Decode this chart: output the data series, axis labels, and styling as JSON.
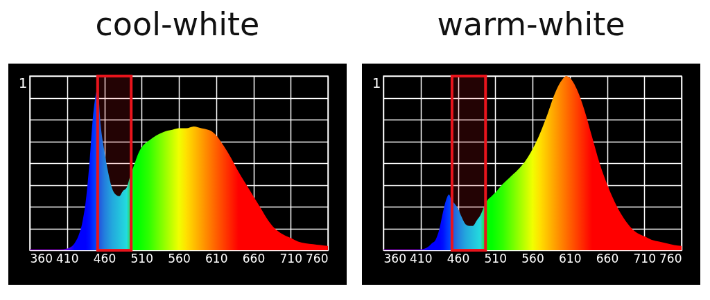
{
  "chart_data": [
    {
      "type": "area",
      "title": "cool-white",
      "x": [
        360,
        400,
        410,
        420,
        425,
        430,
        435,
        440,
        445,
        448,
        451,
        455,
        460,
        465,
        470,
        475,
        480,
        485,
        490,
        495,
        500,
        505,
        510,
        520,
        530,
        540,
        550,
        560,
        570,
        580,
        590,
        600,
        605,
        610,
        620,
        630,
        640,
        650,
        660,
        670,
        680,
        690,
        700,
        710,
        720,
        730,
        740,
        750,
        760
      ],
      "series": [
        {
          "values": [
            0.005,
            0.005,
            0.01,
            0.04,
            0.08,
            0.15,
            0.28,
            0.5,
            0.78,
            0.88,
            0.93,
            0.72,
            0.57,
            0.45,
            0.36,
            0.32,
            0.31,
            0.34,
            0.36,
            0.43,
            0.49,
            0.55,
            0.59,
            0.63,
            0.66,
            0.68,
            0.69,
            0.7,
            0.7,
            0.71,
            0.7,
            0.69,
            0.68,
            0.66,
            0.6,
            0.53,
            0.45,
            0.38,
            0.31,
            0.24,
            0.17,
            0.12,
            0.09,
            0.07,
            0.05,
            0.04,
            0.035,
            0.03,
            0.025
          ],
          "colors": [
            "#8000c0",
            "#8000c0",
            "#6000e0",
            "#0000ff",
            "#0000ff",
            "#0000ff",
            "#0000ff",
            "#0010ff",
            "#0030ff",
            "#0040ff",
            "#0050ff",
            "#0070ff",
            "#0090ff",
            "#00a8ff",
            "#00c0ff",
            "#00d0ff",
            "#00e0ff",
            "#00f0ff",
            "#00ffff",
            "#00ff60",
            "#00ff00",
            "#00ff00",
            "#10ff00",
            "#30ff00",
            "#60ff00",
            "#90ff00",
            "#c0ff00",
            "#f0ff00",
            "#ffe000",
            "#ffc000",
            "#ffa000",
            "#ff8000",
            "#ff7000",
            "#ff6000",
            "#ff4000",
            "#ff2000",
            "#ff0000",
            "#ff0000",
            "#ff0000",
            "#ff0000",
            "#ff0000",
            "#ff0000",
            "#ff0000",
            "#ff0000",
            "#ff0000",
            "#ff0000",
            "#ff0000",
            "#ff0000",
            "#ff0000"
          ]
        }
      ],
      "xlim": [
        360,
        760
      ],
      "xticks": [
        360,
        410,
        460,
        510,
        560,
        610,
        660,
        710,
        760
      ],
      "ylim": [
        0,
        1
      ],
      "yticks": [
        {
          "value": 0,
          "label": null
        },
        {
          "value": 0.125,
          "label": null
        },
        {
          "value": 0.25,
          "label": null
        },
        {
          "value": 0.375,
          "label": null
        },
        {
          "value": 0.5,
          "label": null
        },
        {
          "value": 0.625,
          "label": null
        },
        {
          "value": 0.75,
          "label": null
        },
        {
          "value": 0.875,
          "label": null
        },
        1
      ],
      "grid": true,
      "bands": [
        {
          "axis": "x",
          "from": 451,
          "to": 496,
          "color": "#e8141c"
        }
      ]
    },
    {
      "type": "area",
      "title": "warm-white",
      "x": [
        360,
        400,
        410,
        420,
        425,
        430,
        435,
        440,
        445,
        448,
        451,
        455,
        460,
        465,
        470,
        475,
        480,
        485,
        490,
        495,
        500,
        505,
        510,
        520,
        530,
        540,
        550,
        560,
        570,
        580,
        590,
        600,
        605,
        610,
        620,
        630,
        640,
        650,
        660,
        670,
        680,
        690,
        700,
        710,
        720,
        730,
        740,
        750,
        760
      ],
      "series": [
        {
          "values": [
            0.005,
            0.005,
            0.005,
            0.02,
            0.04,
            0.06,
            0.12,
            0.22,
            0.3,
            0.32,
            0.29,
            0.27,
            0.24,
            0.19,
            0.15,
            0.14,
            0.14,
            0.17,
            0.2,
            0.25,
            0.29,
            0.31,
            0.33,
            0.38,
            0.42,
            0.46,
            0.51,
            0.58,
            0.67,
            0.78,
            0.9,
            0.98,
            1,
            0.99,
            0.92,
            0.8,
            0.65,
            0.5,
            0.38,
            0.28,
            0.2,
            0.14,
            0.1,
            0.08,
            0.06,
            0.05,
            0.04,
            0.03,
            0.025
          ],
          "colors": [
            "#8000c0",
            "#8000c0",
            "#6000e0",
            "#0000ff",
            "#0000ff",
            "#0000ff",
            "#0000ff",
            "#0010ff",
            "#0030ff",
            "#0040ff",
            "#0050ff",
            "#0070ff",
            "#0090ff",
            "#00a8ff",
            "#00c0ff",
            "#00d0ff",
            "#00e0ff",
            "#00f0ff",
            "#00ffff",
            "#00ff60",
            "#00ff00",
            "#00ff00",
            "#10ff00",
            "#30ff00",
            "#60ff00",
            "#90ff00",
            "#c0ff00",
            "#f0ff00",
            "#ffe000",
            "#ffc000",
            "#ffa000",
            "#ff8000",
            "#ff7000",
            "#ff6000",
            "#ff4000",
            "#ff2000",
            "#ff0000",
            "#ff0000",
            "#ff0000",
            "#ff0000",
            "#ff0000",
            "#ff0000",
            "#ff0000",
            "#ff0000",
            "#ff0000",
            "#ff0000",
            "#ff0000",
            "#ff0000",
            "#ff0000"
          ]
        }
      ],
      "xlim": [
        360,
        760
      ],
      "xticks": [
        360,
        410,
        460,
        510,
        560,
        610,
        660,
        710,
        760
      ],
      "ylim": [
        0,
        1
      ],
      "yticks": [
        {
          "value": 0,
          "label": null
        },
        {
          "value": 0.125,
          "label": null
        },
        {
          "value": 0.25,
          "label": null
        },
        {
          "value": 0.375,
          "label": null
        },
        {
          "value": 0.5,
          "label": null
        },
        {
          "value": 0.625,
          "label": null
        },
        {
          "value": 0.75,
          "label": null
        },
        {
          "value": 0.875,
          "label": null
        },
        1
      ],
      "grid": true,
      "bands": [
        {
          "axis": "x",
          "from": 452,
          "to": 497,
          "color": "#e8141c"
        }
      ]
    }
  ]
}
